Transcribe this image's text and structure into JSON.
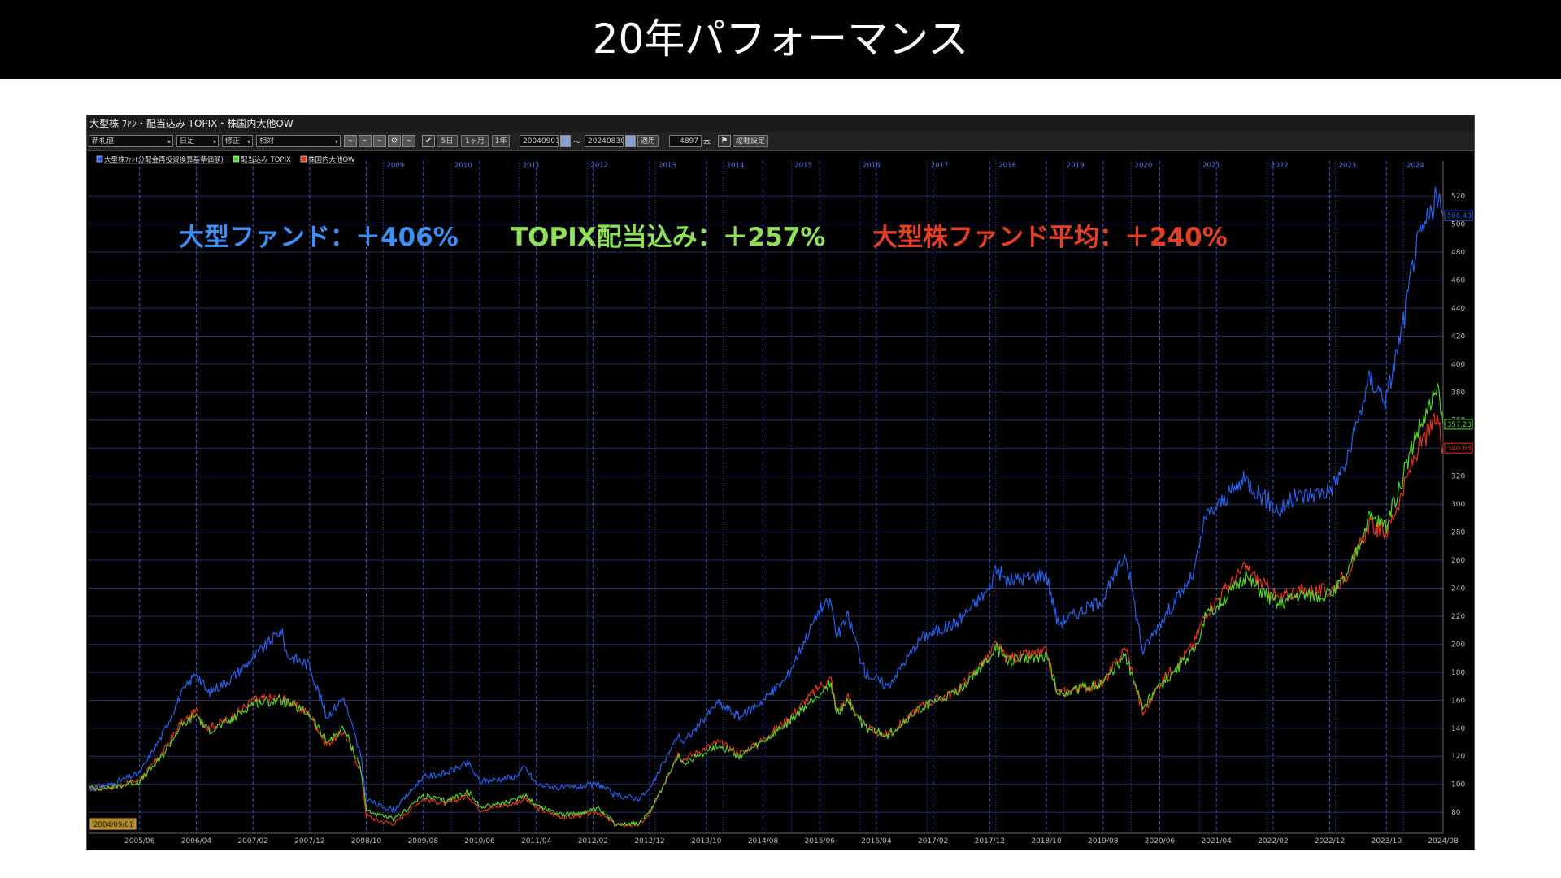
{
  "page": {
    "title": "20年パフォーマンス"
  },
  "window": {
    "title": "大型株 ﾌｧﾝ・配当込み TOPIX・株国内大他OW",
    "toolbar": {
      "select1": "新札値",
      "select2": "日足",
      "select3": "修正",
      "select4": "相対",
      "btn_5d": "5日",
      "btn_1m": "1ヶ月",
      "btn_1y": "1年",
      "date_from": "20040901",
      "tilde": "～",
      "date_to": "20240830",
      "apply": "適用",
      "count": "4897",
      "count_unit": "本",
      "axis_settings": "縦軸設定",
      "check_icon": "check-icon",
      "calendar_icon": "calendar-icon",
      "flag_icon": "flag-icon"
    },
    "start_date_label": "2004/09/01"
  },
  "chart_data": {
    "type": "line",
    "title": "",
    "x_range": [
      "2004-09",
      "2024-08"
    ],
    "ylim": [
      65,
      545
    ],
    "y_ticks": [
      80,
      100,
      120,
      140,
      160,
      180,
      200,
      220,
      240,
      260,
      280,
      300,
      320,
      340,
      360,
      380,
      400,
      420,
      440,
      460,
      480,
      500,
      520
    ],
    "top_year_labels": [
      "2009",
      "2010",
      "2011",
      "2012",
      "2013",
      "2014",
      "2015",
      "2016",
      "2017",
      "2018",
      "2019",
      "2020",
      "2021",
      "2022",
      "2023",
      "2024"
    ],
    "bottom_date_labels": [
      "2005/06",
      "2006/04",
      "2007/02",
      "2007/12",
      "2008/10",
      "2009/08",
      "2010/06",
      "2011/04",
      "2012/02",
      "2012/12",
      "2013/10",
      "2014/08",
      "2015/06",
      "2016/04",
      "2017/02",
      "2017/12",
      "2018/10",
      "2019/08",
      "2020/06",
      "2021/04",
      "2022/02",
      "2022/12",
      "2023/10",
      "2024/08"
    ],
    "legend_position": "top-left",
    "annotations": [
      {
        "text": "大型ファンド：＋406%",
        "color": "#3f8ef2"
      },
      {
        "text": "TOPIX配当込み：＋257%",
        "color": "#8ee05a"
      },
      {
        "text": "大型株ファンド平均：＋240%",
        "color": "#e23f25"
      }
    ],
    "last_value_labels": [
      "506.43",
      "357.23",
      "340.63"
    ],
    "series": [
      {
        "name": "大型株ﾌｧﾝ(分配金再投資換算基準価額)",
        "color": "#2a5fe8",
        "points": [
          [
            "2004-09",
            97
          ],
          [
            "2005-01",
            100
          ],
          [
            "2005-06",
            108
          ],
          [
            "2005-10",
            135
          ],
          [
            "2006-01",
            162
          ],
          [
            "2006-04",
            180
          ],
          [
            "2006-06",
            165
          ],
          [
            "2006-10",
            175
          ],
          [
            "2007-02",
            190
          ],
          [
            "2007-07",
            210
          ],
          [
            "2007-08",
            192
          ],
          [
            "2007-12",
            185
          ],
          [
            "2008-03",
            148
          ],
          [
            "2008-06",
            162
          ],
          [
            "2008-09",
            120
          ],
          [
            "2008-10",
            90
          ],
          [
            "2008-12",
            85
          ],
          [
            "2009-03",
            82
          ],
          [
            "2009-08",
            105
          ],
          [
            "2009-12",
            108
          ],
          [
            "2010-04",
            115
          ],
          [
            "2010-06",
            102
          ],
          [
            "2010-12",
            105
          ],
          [
            "2011-02",
            112
          ],
          [
            "2011-04",
            100
          ],
          [
            "2011-09",
            97
          ],
          [
            "2012-03",
            100
          ],
          [
            "2012-06",
            92
          ],
          [
            "2012-10",
            90
          ],
          [
            "2012-12",
            96
          ],
          [
            "2013-05",
            135
          ],
          [
            "2013-06",
            130
          ],
          [
            "2013-12",
            158
          ],
          [
            "2014-04",
            148
          ],
          [
            "2014-08",
            160
          ],
          [
            "2014-12",
            175
          ],
          [
            "2015-06",
            225
          ],
          [
            "2015-08",
            230
          ],
          [
            "2015-09",
            205
          ],
          [
            "2015-11",
            220
          ],
          [
            "2016-02",
            180
          ],
          [
            "2016-06",
            170
          ],
          [
            "2016-12",
            205
          ],
          [
            "2017-06",
            215
          ],
          [
            "2017-12",
            240
          ],
          [
            "2018-01",
            255
          ],
          [
            "2018-03",
            245
          ],
          [
            "2018-10",
            250
          ],
          [
            "2018-12",
            215
          ],
          [
            "2019-08",
            232
          ],
          [
            "2019-12",
            265
          ],
          [
            "2020-03",
            195
          ],
          [
            "2020-06",
            215
          ],
          [
            "2020-12",
            250
          ],
          [
            "2021-02",
            290
          ],
          [
            "2021-09",
            318
          ],
          [
            "2022-03",
            295
          ],
          [
            "2022-06",
            305
          ],
          [
            "2022-12",
            310
          ],
          [
            "2023-03",
            330
          ],
          [
            "2023-07",
            390
          ],
          [
            "2023-10",
            375
          ],
          [
            "2024-01",
            430
          ],
          [
            "2024-03",
            480
          ],
          [
            "2024-07",
            520
          ],
          [
            "2024-08",
            506
          ]
        ]
      },
      {
        "name": "配当込み TOPIX",
        "color": "#55d22b",
        "points": [
          [
            "2004-09",
            97
          ],
          [
            "2005-01",
            98
          ],
          [
            "2005-06",
            102
          ],
          [
            "2005-10",
            120
          ],
          [
            "2006-01",
            140
          ],
          [
            "2006-04",
            150
          ],
          [
            "2006-06",
            138
          ],
          [
            "2006-10",
            145
          ],
          [
            "2007-02",
            158
          ],
          [
            "2007-07",
            160
          ],
          [
            "2007-12",
            150
          ],
          [
            "2008-03",
            130
          ],
          [
            "2008-06",
            140
          ],
          [
            "2008-09",
            112
          ],
          [
            "2008-10",
            82
          ],
          [
            "2008-12",
            78
          ],
          [
            "2009-03",
            75
          ],
          [
            "2009-08",
            92
          ],
          [
            "2009-12",
            88
          ],
          [
            "2010-04",
            95
          ],
          [
            "2010-06",
            84
          ],
          [
            "2010-12",
            88
          ],
          [
            "2011-02",
            93
          ],
          [
            "2011-04",
            85
          ],
          [
            "2011-09",
            78
          ],
          [
            "2012-03",
            82
          ],
          [
            "2012-06",
            72
          ],
          [
            "2012-10",
            72
          ],
          [
            "2012-12",
            80
          ],
          [
            "2013-05",
            120
          ],
          [
            "2013-06",
            115
          ],
          [
            "2013-12",
            128
          ],
          [
            "2014-04",
            120
          ],
          [
            "2014-08",
            130
          ],
          [
            "2014-12",
            142
          ],
          [
            "2015-06",
            165
          ],
          [
            "2015-08",
            172
          ],
          [
            "2015-09",
            150
          ],
          [
            "2015-11",
            160
          ],
          [
            "2016-02",
            140
          ],
          [
            "2016-06",
            135
          ],
          [
            "2016-12",
            155
          ],
          [
            "2017-06",
            165
          ],
          [
            "2017-12",
            190
          ],
          [
            "2018-01",
            198
          ],
          [
            "2018-03",
            188
          ],
          [
            "2018-10",
            192
          ],
          [
            "2018-12",
            165
          ],
          [
            "2019-08",
            172
          ],
          [
            "2019-12",
            192
          ],
          [
            "2020-03",
            155
          ],
          [
            "2020-06",
            170
          ],
          [
            "2020-12",
            195
          ],
          [
            "2021-02",
            218
          ],
          [
            "2021-09",
            248
          ],
          [
            "2022-03",
            228
          ],
          [
            "2022-06",
            235
          ],
          [
            "2022-12",
            235
          ],
          [
            "2023-03",
            248
          ],
          [
            "2023-07",
            290
          ],
          [
            "2023-10",
            285
          ],
          [
            "2024-01",
            320
          ],
          [
            "2024-03",
            348
          ],
          [
            "2024-07",
            380
          ],
          [
            "2024-08",
            357
          ]
        ]
      },
      {
        "name": "株国内大他OW",
        "color": "#e0341c",
        "points": [
          [
            "2004-09",
            97
          ],
          [
            "2005-01",
            98
          ],
          [
            "2005-06",
            103
          ],
          [
            "2005-10",
            122
          ],
          [
            "2006-01",
            142
          ],
          [
            "2006-04",
            152
          ],
          [
            "2006-06",
            140
          ],
          [
            "2006-10",
            147
          ],
          [
            "2007-02",
            160
          ],
          [
            "2007-07",
            162
          ],
          [
            "2007-12",
            150
          ],
          [
            "2008-03",
            128
          ],
          [
            "2008-06",
            138
          ],
          [
            "2008-09",
            110
          ],
          [
            "2008-10",
            78
          ],
          [
            "2008-12",
            74
          ],
          [
            "2009-03",
            72
          ],
          [
            "2009-08",
            90
          ],
          [
            "2009-12",
            86
          ],
          [
            "2010-04",
            92
          ],
          [
            "2010-06",
            82
          ],
          [
            "2010-12",
            86
          ],
          [
            "2011-02",
            90
          ],
          [
            "2011-04",
            83
          ],
          [
            "2011-09",
            76
          ],
          [
            "2012-03",
            80
          ],
          [
            "2012-06",
            71
          ],
          [
            "2012-10",
            71
          ],
          [
            "2012-12",
            78
          ],
          [
            "2013-05",
            122
          ],
          [
            "2013-06",
            118
          ],
          [
            "2013-12",
            130
          ],
          [
            "2014-04",
            122
          ],
          [
            "2014-08",
            132
          ],
          [
            "2014-12",
            145
          ],
          [
            "2015-06",
            170
          ],
          [
            "2015-08",
            175
          ],
          [
            "2015-09",
            152
          ],
          [
            "2015-11",
            162
          ],
          [
            "2016-02",
            140
          ],
          [
            "2016-06",
            135
          ],
          [
            "2016-12",
            156
          ],
          [
            "2017-06",
            166
          ],
          [
            "2017-12",
            192
          ],
          [
            "2018-01",
            200
          ],
          [
            "2018-03",
            190
          ],
          [
            "2018-10",
            194
          ],
          [
            "2018-12",
            165
          ],
          [
            "2019-08",
            172
          ],
          [
            "2019-12",
            198
          ],
          [
            "2020-03",
            150
          ],
          [
            "2020-06",
            172
          ],
          [
            "2020-12",
            200
          ],
          [
            "2021-02",
            222
          ],
          [
            "2021-09",
            255
          ],
          [
            "2022-03",
            232
          ],
          [
            "2022-06",
            238
          ],
          [
            "2022-12",
            238
          ],
          [
            "2023-03",
            250
          ],
          [
            "2023-07",
            285
          ],
          [
            "2023-10",
            280
          ],
          [
            "2024-01",
            310
          ],
          [
            "2024-03",
            335
          ],
          [
            "2024-07",
            362
          ],
          [
            "2024-08",
            340
          ]
        ]
      }
    ]
  }
}
